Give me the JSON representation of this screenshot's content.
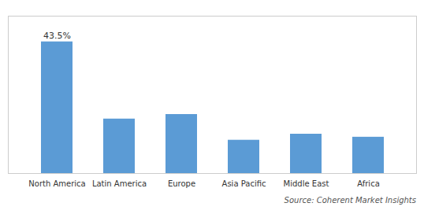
{
  "chart_data": {
    "type": "bar",
    "categories": [
      "North America",
      "Latin America",
      "Europe",
      "Asia Pacific",
      "Middle East",
      "Africa"
    ],
    "values": [
      43.5,
      18.0,
      19.5,
      11.0,
      13.0,
      12.0
    ],
    "color": "#5B9BD5",
    "ylim": [
      0,
      52
    ],
    "grid": false,
    "tick_labels": "x",
    "annotations": [
      {
        "text": "43.5%",
        "x": "North America",
        "y": 43.5
      },
      {
        "text": "Source: Coherent Market Insights"
      }
    ]
  }
}
